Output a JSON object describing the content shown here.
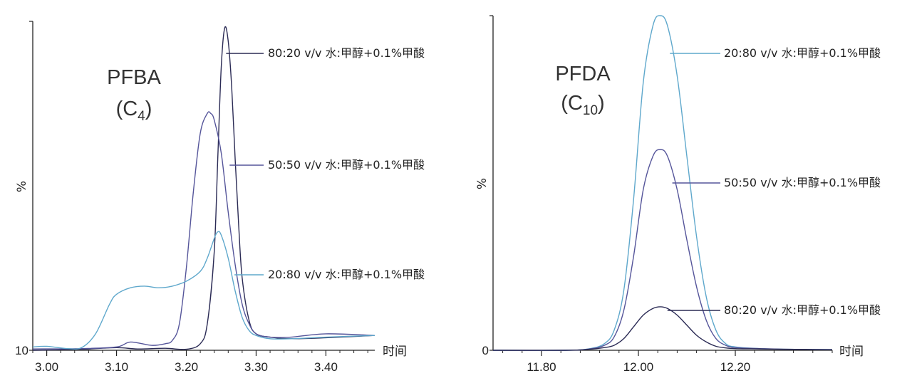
{
  "chart_data": [
    {
      "type": "line",
      "title": "",
      "compound": "PFBA",
      "formula_base": "(C",
      "formula_sub": "4",
      "formula_close": ")",
      "xlabel": "时间",
      "ylabel": "%",
      "xlim": [
        2.98,
        3.47
      ],
      "ylim": [
        0,
        100
      ],
      "xticks": [
        3.0,
        3.1,
        3.2,
        3.3,
        3.4
      ],
      "xtick_labels": [
        "3.00",
        "3.10",
        "3.20",
        "3.30",
        "3.40"
      ],
      "ytick_label": "10",
      "series": [
        {
          "name": "80:20 v/v 水:甲醇+0.1%甲酸",
          "color": "#2b2b55",
          "x": [
            2.98,
            3.05,
            3.1,
            3.13,
            3.17,
            3.2,
            3.22,
            3.23,
            3.24,
            3.245,
            3.25,
            3.255,
            3.26,
            3.265,
            3.27,
            3.275,
            3.28,
            3.29,
            3.3,
            3.32,
            3.35,
            3.4,
            3.47
          ],
          "y": [
            0,
            0.3,
            0.8,
            0.4,
            0.6,
            0.3,
            2,
            8,
            30,
            58,
            86,
            98,
            94,
            80,
            58,
            38,
            22,
            9,
            5,
            4,
            3.5,
            3.8,
            4.5
          ]
        },
        {
          "name": "50:50 v/v 水:甲醇+0.1%甲酸",
          "color": "#55559a",
          "x": [
            2.98,
            3.05,
            3.1,
            3.12,
            3.15,
            3.17,
            3.18,
            3.19,
            3.2,
            3.21,
            3.22,
            3.23,
            3.235,
            3.24,
            3.25,
            3.26,
            3.27,
            3.28,
            3.29,
            3.3,
            3.32,
            3.35,
            3.4,
            3.47
          ],
          "y": [
            0.4,
            0.5,
            1,
            2.5,
            1.5,
            2,
            3,
            8,
            25,
            48,
            66,
            72,
            72,
            70,
            60,
            42,
            26,
            14,
            8,
            5,
            4,
            4,
            5,
            4.5
          ]
        },
        {
          "name": "20:80 v/v 水:甲醇+0.1%甲酸",
          "color": "#5fa8cc",
          "x": [
            2.98,
            3.0,
            3.03,
            3.05,
            3.07,
            3.09,
            3.1,
            3.12,
            3.14,
            3.16,
            3.18,
            3.2,
            3.22,
            3.23,
            3.24,
            3.245,
            3.25,
            3.26,
            3.27,
            3.28,
            3.29,
            3.3,
            3.32,
            3.35,
            3.4,
            3.47
          ],
          "y": [
            1,
            1.2,
            0.5,
            0.8,
            5,
            14,
            17,
            19,
            19.5,
            19,
            19.5,
            21,
            24,
            28,
            34,
            36,
            35,
            28,
            18,
            10,
            6,
            4.5,
            3.5,
            3.5,
            4,
            4.5
          ]
        }
      ],
      "annotations": [
        {
          "series": 0,
          "x": 3.257,
          "label": "80:20 v/v 水:甲醇+0.1%甲酸"
        },
        {
          "series": 1,
          "x": 3.262,
          "label": "50:50 v/v 水:甲醇+0.1%甲酸"
        },
        {
          "series": 2,
          "x": 3.269,
          "label": "20:80 v/v 水:甲醇+0.1%甲酸"
        }
      ]
    },
    {
      "type": "line",
      "title": "",
      "compound": "PFDA",
      "formula_base": "(C",
      "formula_sub": "10",
      "formula_close": ")",
      "xlabel": "时间",
      "ylabel": "%",
      "xlim": [
        11.7,
        12.4
      ],
      "ylim": [
        0,
        100
      ],
      "xticks": [
        11.8,
        12.0,
        12.2
      ],
      "xtick_labels": [
        "11.80",
        "12.00",
        "12.20"
      ],
      "ytick_label": "0",
      "series": [
        {
          "name": "20:80 v/v 水:甲醇+0.1%甲酸",
          "color": "#5fa8cc",
          "x": [
            11.7,
            11.85,
            11.9,
            11.93,
            11.95,
            11.97,
            11.99,
            12.01,
            12.03,
            12.045,
            12.06,
            12.08,
            12.1,
            12.12,
            12.14,
            12.16,
            12.18,
            12.2,
            12.25,
            12.3,
            12.4
          ],
          "y": [
            0,
            0,
            0.5,
            2,
            6,
            18,
            45,
            80,
            97,
            100,
            97,
            82,
            58,
            34,
            16,
            6,
            2,
            1,
            0.5,
            0.3,
            0.2
          ]
        },
        {
          "name": "50:50 v/v 水:甲醇+0.1%甲酸",
          "color": "#55559a",
          "x": [
            11.7,
            11.85,
            11.9,
            11.93,
            11.95,
            11.97,
            11.99,
            12.01,
            12.03,
            12.045,
            12.06,
            12.08,
            12.1,
            12.12,
            12.14,
            12.16,
            12.18,
            12.2,
            12.25,
            12.3,
            12.4
          ],
          "y": [
            0,
            0,
            0.4,
            1.5,
            4,
            12,
            28,
            48,
            58,
            60,
            58,
            48,
            33,
            19,
            9,
            3.5,
            1.5,
            0.8,
            0.5,
            0.3,
            0.2
          ]
        },
        {
          "name": "80:20 v/v 水:甲醇+0.1%甲酸",
          "color": "#2b2b55",
          "x": [
            11.7,
            11.85,
            11.9,
            11.93,
            11.95,
            11.97,
            11.99,
            12.01,
            12.03,
            12.045,
            12.06,
            12.08,
            12.1,
            12.12,
            12.14,
            12.16,
            12.18,
            12.2,
            12.25,
            12.3,
            12.4
          ],
          "y": [
            0,
            0,
            0.3,
            0.8,
            1.5,
            3.5,
            7,
            10.5,
            12.5,
            13,
            12.5,
            10.5,
            7.5,
            4.5,
            2.5,
            1.2,
            0.7,
            0.5,
            0.4,
            0.3,
            0.2
          ]
        }
      ],
      "annotations": [
        {
          "series": 0,
          "x": 12.065,
          "label": "20:80 v/v 水:甲醇+0.1%甲酸"
        },
        {
          "series": 1,
          "x": 12.07,
          "label": "50:50 v/v 水:甲醇+0.1%甲酸"
        },
        {
          "series": 2,
          "x": 12.06,
          "label": "80:20 v/v 水:甲醇+0.1%甲酸"
        }
      ]
    }
  ]
}
